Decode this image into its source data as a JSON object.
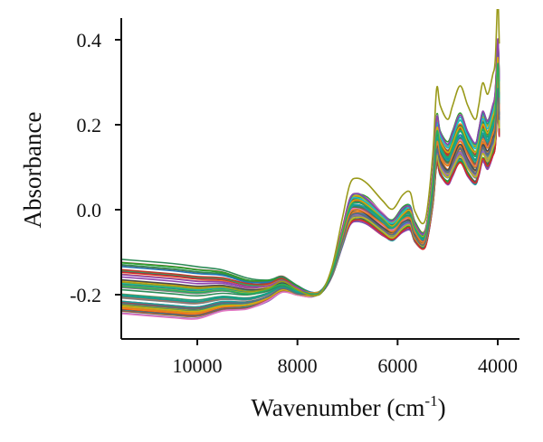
{
  "chart_data": {
    "type": "line",
    "xlabel": "Wavenumber (cm",
    "xlabel_superscript": "-1",
    "xlabel_suffix": ")",
    "ylabel": "Absorbance",
    "xlim": [
      11550,
      3850
    ],
    "ylim": [
      -0.3,
      0.45
    ],
    "x_reversed": true,
    "xticks": [
      10000,
      8000,
      6000,
      4000
    ],
    "xtick_labels": [
      "10000",
      "8000",
      "6000",
      "4000"
    ],
    "yticks": [
      -0.2,
      0.0,
      0.2,
      0.4
    ],
    "ytick_labels": [
      "-0.2",
      "0.0",
      "0.2",
      "0.4"
    ],
    "grid": false,
    "legend": "none",
    "series_count": 60,
    "template_spectrum": {
      "x": [
        11550,
        10500,
        10000,
        9500,
        9000,
        8600,
        8300,
        8000,
        7700,
        7500,
        7300,
        7100,
        6950,
        6800,
        6600,
        6300,
        6100,
        5900,
        5750,
        5650,
        5450,
        5300,
        5220,
        5150,
        5000,
        4900,
        4750,
        4600,
        4450,
        4380,
        4300,
        4200,
        4100,
        4050,
        4000,
        3970
      ],
      "y": [
        -0.18,
        -0.19,
        -0.195,
        -0.19,
        -0.197,
        -0.19,
        -0.175,
        -0.19,
        -0.2,
        -0.19,
        -0.145,
        -0.06,
        0.0,
        0.01,
        0.0,
        -0.03,
        -0.045,
        -0.02,
        -0.015,
        -0.05,
        -0.065,
        0.05,
        0.17,
        0.14,
        0.115,
        0.14,
        0.175,
        0.14,
        0.115,
        0.14,
        0.18,
        0.16,
        0.195,
        0.22,
        0.33,
        0.25
      ]
    },
    "series_colors": [
      "#1f77b4",
      "#ff7f0e",
      "#2ca02c",
      "#d62728",
      "#9467bd",
      "#8c564b",
      "#e377c2",
      "#7f7f7f",
      "#bcbd22",
      "#17becf",
      "#2e8b57",
      "#4a4a4a",
      "#1a9e9e",
      "#c0392b",
      "#e67e22",
      "#16a085",
      "#8e44ad",
      "#d4ac0d",
      "#5d6d7e",
      "#27ae60"
    ]
  }
}
